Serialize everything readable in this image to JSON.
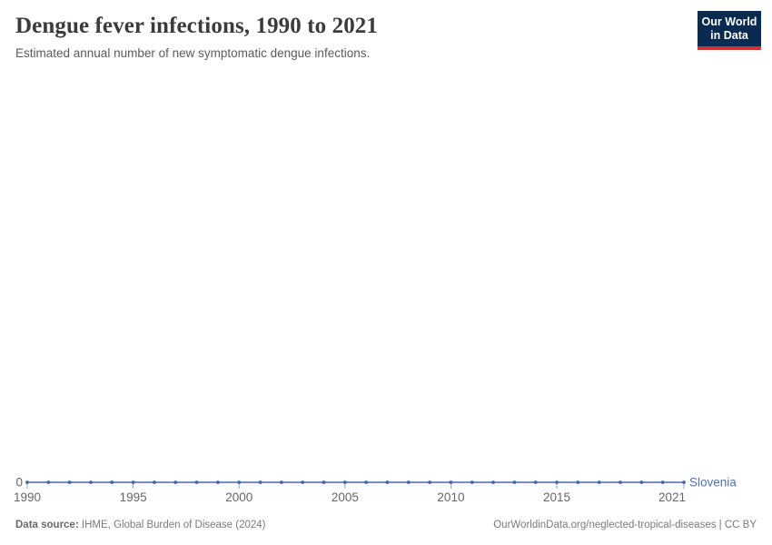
{
  "header": {
    "title": "Dengue fever infections, 1990 to 2021",
    "subtitle": "Estimated annual number of new symptomatic dengue infections.",
    "logo": {
      "line1": "Our World",
      "line2": "in Data"
    }
  },
  "chart_data": {
    "type": "line",
    "title": "Dengue fever infections, 1990 to 2021",
    "subtitle": "Estimated annual number of new symptomatic dengue infections.",
    "x": [
      1990,
      1991,
      1992,
      1993,
      1994,
      1995,
      1996,
      1997,
      1998,
      1999,
      2000,
      2001,
      2002,
      2003,
      2004,
      2005,
      2006,
      2007,
      2008,
      2009,
      2010,
      2011,
      2012,
      2013,
      2014,
      2015,
      2016,
      2017,
      2018,
      2019,
      2020,
      2021
    ],
    "series": [
      {
        "name": "Slovenia",
        "values": [
          0,
          0,
          0,
          0,
          0,
          0,
          0,
          0,
          0,
          0,
          0,
          0,
          0,
          0,
          0,
          0,
          0,
          0,
          0,
          0,
          0,
          0,
          0,
          0,
          0,
          0,
          0,
          0,
          0,
          0,
          0,
          0
        ]
      }
    ],
    "xlabel": "",
    "ylabel": "",
    "x_tick_labels": [
      "1990",
      "1995",
      "2000",
      "2005",
      "2010",
      "2015",
      "2021"
    ],
    "y_tick_labels": [
      "0"
    ],
    "ylim": [
      0,
      0
    ],
    "grid": false,
    "legend_position": "end-of-line"
  },
  "axis": {
    "zero_label": "0"
  },
  "footer": {
    "datasource_label": "Data source:",
    "datasource_value": "IHME, Global Burden of Disease (2024)",
    "rights": "OurWorldinData.org/neglected-tropical-diseases | CC BY"
  },
  "colors": {
    "line": "#5b80c4",
    "marker": "#3d68ae",
    "entity_label": "#4c74b8",
    "axis_text": "#666666",
    "tick_mark": "#a5a5a5",
    "logo_bg": "#0b2a51",
    "logo_red": "#d0342c"
  }
}
